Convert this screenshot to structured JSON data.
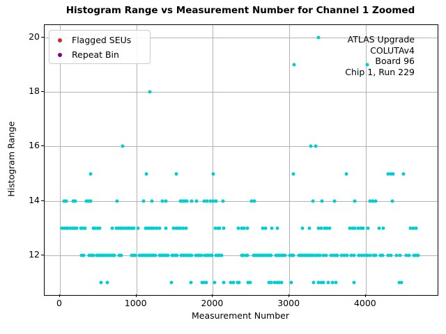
{
  "chart_data": {
    "type": "scatter",
    "title": "Histogram Range vs Measurement Number for Channel 1 Zoomed",
    "xlabel": "Measurement Number",
    "ylabel": "Histogram Range",
    "xlim": [
      -200,
      4940
    ],
    "ylim": [
      10.55,
      20.45
    ],
    "xticks": [
      0,
      1000,
      2000,
      3000,
      4000
    ],
    "yticks": [
      12,
      14,
      16,
      18,
      20
    ],
    "grid": true,
    "grid_color": "#b3b3b3",
    "frame_color": "#000000",
    "legend": {
      "position": "upper left",
      "entries": [
        {
          "label": "Flagged SEUs",
          "color": "#d62728",
          "marker": "dot-icon"
        },
        {
          "label": "Repeat Bin",
          "color": "#800080",
          "marker": "dot-icon"
        }
      ]
    },
    "annotation": {
      "position": "upper right",
      "lines": [
        "ATLAS Upgrade",
        "COLUTAv4",
        "Board 96",
        "Chip 1, Run 229"
      ]
    },
    "series": [
      {
        "name": "histogram-range-points",
        "color": "#00CED1",
        "rows": [
          {
            "y": 20,
            "x": [
              3380
            ]
          },
          {
            "y": 19,
            "x": [
              3060,
              4020
            ]
          },
          {
            "y": 18,
            "x": [
              1180
            ]
          },
          {
            "y": 16,
            "x": [
              820,
              3280,
              3345
            ]
          },
          {
            "y": 15,
            "x": [
              400,
              1135,
              1520,
              2005,
              3050,
              3750,
              4290,
              4325,
              4360,
              4490
            ]
          },
          {
            "y": 14,
            "x": [
              55,
              85,
              170,
              200,
              345,
              375,
              405,
              750,
              1090,
              1200,
              1340,
              1385,
              1575,
              1605,
              1635,
              1660,
              1720,
              1790,
              1885,
              1920,
              1970,
              2010,
              2040,
              2130,
              2510,
              2540,
              3310,
              3430,
              3590,
              3860,
              4060,
              4095,
              4130,
              4350
            ]
          },
          {
            "y": 13,
            "x": [
              25,
              55,
              80,
              105,
              135,
              160,
              190,
              215,
              273,
              300,
              325,
              435,
              460,
              490,
              517,
              685,
              740,
              765,
              790,
              815,
              840,
              865,
              890,
              915,
              940,
              965,
              1020,
              1120,
              1145,
              1175,
              1205,
              1235,
              1270,
              1300,
              1385,
              1485,
              1520,
              1550,
              1580,
              1615,
              1650,
              2030,
              2065,
              2090,
              2140,
              2330,
              2380,
              2405,
              2455,
              2655,
              2685,
              2770,
              2840,
              3175,
              3265,
              3385,
              3420,
              3460,
              3490,
              3525,
              3790,
              3830,
              3860,
              3900,
              3935,
              3965,
              4025,
              4170,
              4225,
              4585,
              4620,
              4655
            ]
          },
          {
            "y": 12,
            "x": [
              282,
              310,
              380,
              410,
              434,
              486,
              510,
              531,
              556,
              577,
              601,
              623,
              647,
              668,
              693,
              714,
              775,
              799,
              942,
              966,
              988,
              1042,
              1064,
              1088,
              1109,
              1134,
              1155,
              1179,
              1200,
              1225,
              1246,
              1301,
              1322,
              1346,
              1368,
              1392,
              1416,
              1468,
              1489,
              1513,
              1535,
              1589,
              1611,
              1635,
              1656,
              1680,
              1702,
              1726,
              1778,
              1802,
              1823,
              1848,
              1899,
              1924,
              1945,
              1969,
              1990,
              2045,
              2066,
              2091,
              2112,
              2379,
              2400,
              2431,
              2455,
              2537,
              2561,
              2583,
              2607,
              2628,
              2652,
              2674,
              2698,
              2719,
              2744,
              2765,
              2826,
              2850,
              2871,
              2896,
              2917,
              2941,
              3008,
              3032,
              3057,
              3130,
              3154,
              3175,
              3200,
              3221,
              3245,
              3266,
              3291,
              3312,
              3342,
              3373,
              3403,
              3449,
              3479,
              3549,
              3579,
              3610,
              3631,
              3686,
              3716,
              3753,
              3814,
              3844,
              3914,
              3944,
              3981,
              4017,
              4054,
              4102,
              4133,
              4194,
              4224,
              4294,
              4330,
              4406,
              4446,
              4534,
              4564,
              4628,
              4659,
              4689
            ]
          },
          {
            "y": 11,
            "x": [
              540,
              620,
              1460,
              1715,
              1860,
              1890,
              1915,
              2020,
              2140,
              2230,
              2270,
              2320,
              2345,
              2460,
              2490,
              2730,
              2765,
              2805,
              2840,
              2870,
              2900,
              3030,
              3320,
              3385,
              3415,
              3445,
              3510,
              3560,
              3610,
              3850,
              4440,
              4470
            ]
          }
        ]
      }
    ]
  }
}
